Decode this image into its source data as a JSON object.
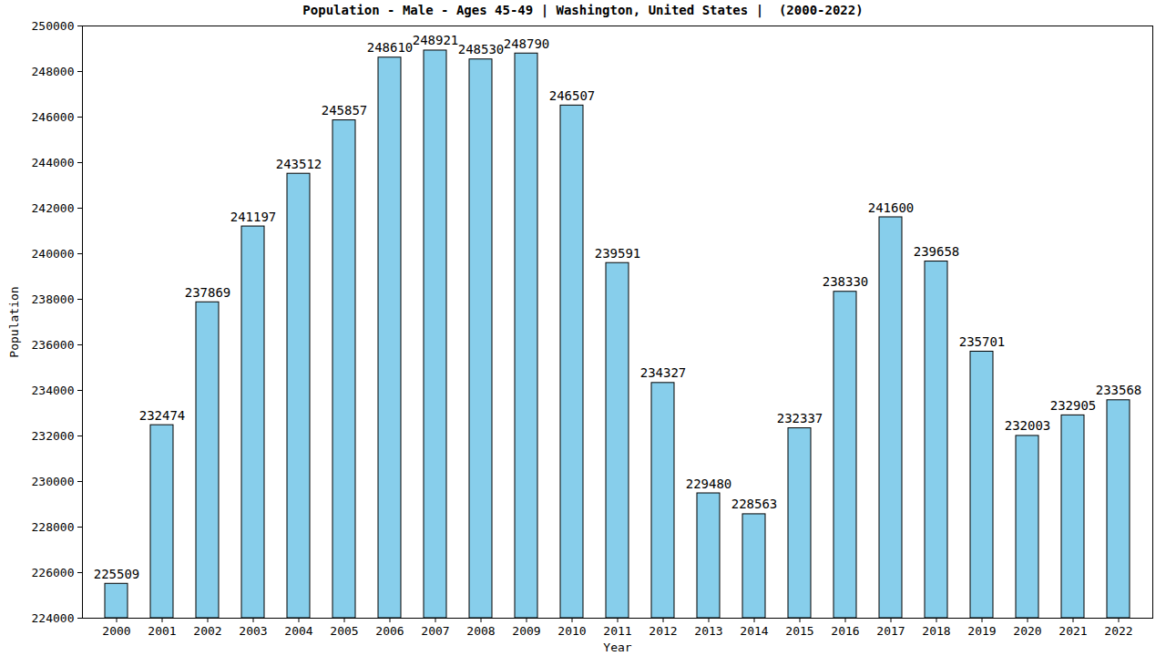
{
  "chart_data": {
    "type": "bar",
    "title": "Population - Male - Ages 45-49 | Washington, United States |  (2000-2022)",
    "x_label": "Year",
    "y_label": "Population",
    "categories": [
      "2000",
      "2001",
      "2002",
      "2003",
      "2004",
      "2005",
      "2006",
      "2007",
      "2008",
      "2009",
      "2010",
      "2011",
      "2012",
      "2013",
      "2014",
      "2015",
      "2016",
      "2017",
      "2018",
      "2019",
      "2020",
      "2021",
      "2022"
    ],
    "values": [
      225509,
      232474,
      237869,
      241197,
      243512,
      245857,
      248610,
      248921,
      248530,
      248790,
      246507,
      239591,
      234327,
      229480,
      228563,
      232337,
      238330,
      241600,
      239658,
      235701,
      232003,
      232905,
      233568
    ],
    "color": "#87ceeb",
    "ylim": [
      224000,
      250000
    ],
    "yticks": [
      224000,
      226000,
      228000,
      230000,
      232000,
      234000,
      236000,
      238000,
      240000,
      242000,
      244000,
      246000,
      248000,
      250000
    ],
    "grid": false,
    "data_labels": true
  }
}
